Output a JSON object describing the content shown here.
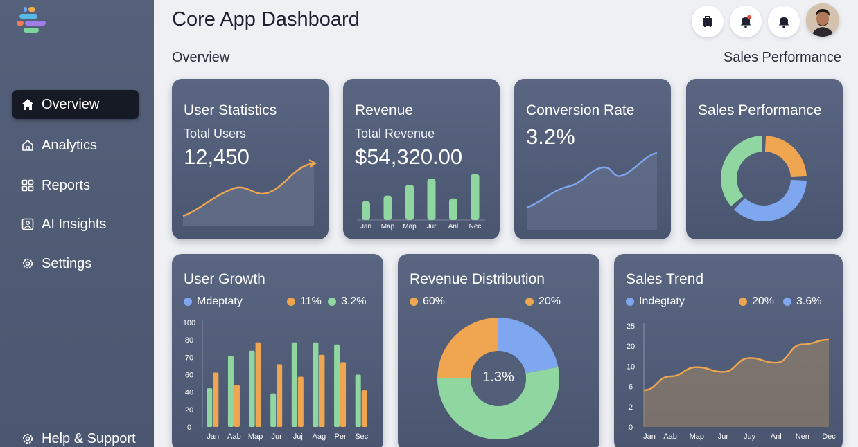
{
  "app": {
    "title": "Core App Dashboard"
  },
  "header": {
    "overview_label": "Overview",
    "sales_label": "Sales Performance"
  },
  "sidebar": {
    "items": [
      {
        "label": "Overview",
        "icon": "home-icon",
        "active": true
      },
      {
        "label": "Analytics",
        "icon": "house-outline-icon"
      },
      {
        "label": "Reports",
        "icon": "grid-icon"
      },
      {
        "label": "AI Insights",
        "icon": "image-icon"
      },
      {
        "label": "Settings",
        "icon": "gear-icon"
      }
    ],
    "help_label": "Help & Support"
  },
  "cards": {
    "user_stats": {
      "title": "User Statistics",
      "sub": "Total Users",
      "value": "12,450"
    },
    "revenue": {
      "title": "Revenue",
      "sub": "Total Revenue",
      "value": "$54,320.00",
      "months": [
        "Jan",
        "Map",
        "Map",
        "Jur",
        "Anl",
        "Nec"
      ]
    },
    "conversion": {
      "title": "Conversion Rate",
      "value": "3.2%"
    },
    "sales_perf": {
      "title": "Sales Performance"
    },
    "user_growth": {
      "title": "User Growth",
      "legend": [
        {
          "label": "Mdeptaty",
          "color": "#7fa7f0"
        },
        {
          "label": "11%",
          "color": "#f0a650"
        },
        {
          "label": "3.2%",
          "color": "#8fd6a0"
        }
      ]
    },
    "rev_dist": {
      "title": "Revenue Distribution",
      "center": "1.3%",
      "legend": [
        {
          "label": "60%",
          "color": "#f0a650"
        },
        {
          "label": "20%",
          "color": "#f0a650"
        }
      ]
    },
    "sales_trend": {
      "title": "Sales Trend",
      "legend": [
        {
          "label": "Indegtaty",
          "color": "#7fa7f0"
        },
        {
          "label": "20%",
          "color": "#f0a650"
        },
        {
          "label": "3.6%",
          "color": "#7fa7f0"
        }
      ]
    }
  },
  "chart_data": [
    {
      "type": "bar",
      "title": "Revenue",
      "categories": [
        "Jan",
        "Map",
        "Map",
        "Jur",
        "Anl",
        "Nec"
      ],
      "values": [
        40,
        52,
        75,
        88,
        46,
        98
      ]
    },
    {
      "type": "bar",
      "title": "User Growth",
      "categories": [
        "Jan",
        "Aab",
        "Map",
        "Jur",
        "Juj",
        "Aag",
        "Per",
        "Sec"
      ],
      "yticks": [
        "100",
        "80",
        "70",
        "60",
        "40",
        "20",
        "0"
      ],
      "ylim": [
        0,
        100
      ],
      "series": [
        {
          "name": "3.2%",
          "color": "#8fd6a0",
          "values": [
            37,
            68,
            73,
            32,
            81,
            81,
            79,
            50
          ]
        },
        {
          "name": "11%",
          "color": "#f0a650",
          "values": [
            52,
            40,
            81,
            60,
            48,
            69,
            62,
            35
          ]
        }
      ]
    },
    {
      "type": "pie",
      "title": "Sales Performance",
      "slices": [
        {
          "value": 25,
          "color": "#f0a650"
        },
        {
          "value": 38,
          "color": "#7fa7f0"
        },
        {
          "value": 37,
          "color": "#8fd6a0"
        }
      ]
    },
    {
      "type": "pie",
      "title": "Revenue Distribution",
      "slices": [
        {
          "value": 22,
          "color": "#7fa7f0"
        },
        {
          "value": 53,
          "color": "#8fd6a0"
        },
        {
          "value": 25,
          "color": "#f0a650"
        }
      ]
    },
    {
      "type": "area",
      "title": "Sales Trend",
      "categories": [
        "Jan",
        "Aab",
        "Map",
        "Jur",
        "Juy",
        "Anl",
        "Nen",
        "Dec"
      ],
      "yticks": [
        "25",
        "20",
        "10",
        "6",
        "2",
        "0"
      ],
      "values": [
        8,
        11,
        13,
        12,
        15,
        14,
        18,
        19
      ]
    }
  ]
}
